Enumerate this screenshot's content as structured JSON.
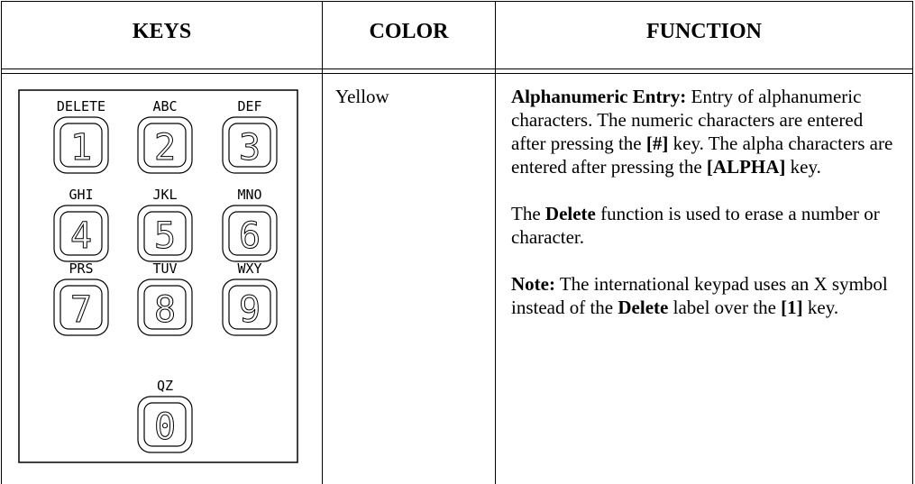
{
  "table": {
    "headers": [
      "KEYS",
      "COLOR",
      "FUNCTION"
    ],
    "rows": [
      {
        "keypad": [
          {
            "label": "DELETE",
            "digit": "1"
          },
          {
            "label": "ABC",
            "digit": "2"
          },
          {
            "label": "DEF",
            "digit": "3"
          },
          {
            "label": "GHI",
            "digit": "4"
          },
          {
            "label": "JKL",
            "digit": "5"
          },
          {
            "label": "MNO",
            "digit": "6"
          },
          {
            "label": "PRS",
            "digit": "7"
          },
          {
            "label": "TUV",
            "digit": "8"
          },
          {
            "label": "WXY",
            "digit": "9"
          },
          {
            "label": "QZ",
            "digit": "0"
          }
        ],
        "color": "Yellow",
        "function": [
          [
            {
              "text": "Alphanumeric Entry:",
              "bold": true
            },
            {
              "text": " Entry of alphanumeric characters. The numeric characters are entered after pressing the "
            },
            {
              "text": "[#]",
              "bold": true
            },
            {
              "text": " key. The alpha characters are entered after pressing the "
            },
            {
              "text": "[ALPHA]",
              "bold": true
            },
            {
              "text": " key."
            }
          ],
          [
            {
              "text": "The "
            },
            {
              "text": "Delete",
              "bold": true
            },
            {
              "text": " function is used to erase a number or character."
            }
          ],
          [
            {
              "text": "Note:",
              "bold": true
            },
            {
              "text": " The international keypad uses an X symbol instead of the "
            },
            {
              "text": "Delete",
              "bold": true
            },
            {
              "text": " label over the "
            },
            {
              "text": "[1]",
              "bold": true
            },
            {
              "text": " key."
            }
          ]
        ]
      }
    ]
  }
}
